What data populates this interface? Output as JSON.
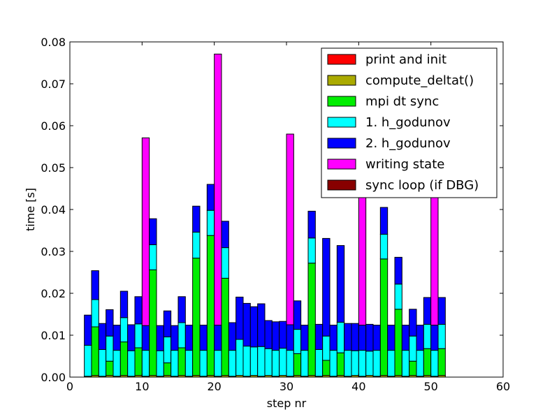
{
  "chart_data": {
    "type": "bar",
    "stacked": true,
    "xlabel": "step nr",
    "ylabel": "time [s]",
    "xlim": [
      0,
      60
    ],
    "ylim": [
      0,
      0.08
    ],
    "xticks": [
      0,
      10,
      20,
      30,
      40,
      50,
      60
    ],
    "xtick_labels": [
      "0",
      "10",
      "20",
      "30",
      "40",
      "50",
      "60"
    ],
    "yticks": [
      0,
      0.01,
      0.02,
      0.03,
      0.04,
      0.05,
      0.06,
      0.07,
      0.08
    ],
    "ytick_labels": [
      "0.00",
      "0.01",
      "0.02",
      "0.03",
      "0.04",
      "0.05",
      "0.06",
      "0.07",
      "0.08"
    ],
    "grid": false,
    "legend_position": "top-right",
    "bar_width": 1.0,
    "x": [
      2,
      3,
      4,
      5,
      6,
      7,
      8,
      9,
      10,
      11,
      12,
      13,
      14,
      15,
      16,
      17,
      18,
      19,
      20,
      21,
      22,
      23,
      24,
      25,
      26,
      27,
      28,
      29,
      30,
      31,
      32,
      33,
      34,
      35,
      36,
      37,
      38,
      39,
      40,
      41,
      42,
      43,
      44,
      45,
      46,
      47,
      48,
      49,
      50,
      51
    ],
    "series": [
      {
        "name": "print and init",
        "color": "#ff0000",
        "values": [
          0,
          0,
          0,
          0,
          0,
          0,
          0,
          0,
          0,
          0,
          0,
          0,
          0,
          0,
          0,
          0,
          0,
          0,
          0,
          0,
          0,
          0,
          0,
          0,
          0,
          0,
          0,
          0,
          0,
          0,
          0,
          0,
          0,
          0,
          0,
          0,
          0,
          0,
          0,
          0,
          0,
          0,
          0,
          0,
          0,
          0,
          0,
          0,
          0,
          0
        ]
      },
      {
        "name": "compute_deltat()",
        "color": "#aaaa00",
        "values": [
          0.0002,
          0.0004,
          0.0002,
          0.0004,
          0.0002,
          0.0004,
          0.0002,
          0.0004,
          0.0002,
          0.0004,
          0.0002,
          0.0004,
          0.0002,
          0.0004,
          0.0002,
          0.0004,
          0.0002,
          0.0004,
          0.0002,
          0.0004,
          0.0002,
          0.0004,
          0.0002,
          0.0004,
          0.0002,
          0.0004,
          0.0002,
          0.0004,
          0.0002,
          0.0004,
          0.0002,
          0.0004,
          0.0002,
          0.0004,
          0.0002,
          0.0004,
          0.0002,
          0.0004,
          0.0002,
          0.0004,
          0.0002,
          0.0004,
          0.0002,
          0.0004,
          0.0002,
          0.0004,
          0.0002,
          0.0004,
          0.0002,
          0.0004
        ]
      },
      {
        "name": "mpi dt sync",
        "color": "#00ee00",
        "values": [
          0,
          0.0116,
          0,
          0.0034,
          0,
          0.008,
          0,
          0.0066,
          0,
          0.0252,
          0,
          0.003,
          0,
          0.0066,
          0,
          0.028,
          0,
          0.0334,
          0,
          0.0232,
          0,
          0,
          0,
          0,
          0,
          0,
          0,
          0,
          0,
          0.0052,
          0,
          0.0268,
          0,
          0.0036,
          0,
          0.0054,
          0,
          0,
          0,
          0,
          0,
          0.0278,
          0,
          0.0158,
          0,
          0.0034,
          0,
          0.0064,
          0,
          0.0064
        ]
      },
      {
        "name": "1. h_godunov",
        "color": "#00ffff",
        "values": [
          0.0074,
          0.0065,
          0.0064,
          0.006,
          0.0062,
          0.0058,
          0.0061,
          0.0057,
          0.0062,
          0.006,
          0.0061,
          0.0062,
          0.0062,
          0.006,
          0.0062,
          0.0062,
          0.0062,
          0.006,
          0.0062,
          0.0073,
          0.0062,
          0.0086,
          0.0072,
          0.0068,
          0.0071,
          0.0064,
          0.0062,
          0.0065,
          0.0062,
          0.0058,
          0.0062,
          0.006,
          0.0064,
          0.0058,
          0.0062,
          0.0073,
          0.0062,
          0.0059,
          0.0062,
          0.0058,
          0.0062,
          0.0059,
          0.0062,
          0.006,
          0.0062,
          0.006,
          0.0062,
          0.0058,
          0.0062,
          0.0058
        ]
      },
      {
        "name": "2. h_godunov",
        "color": "#0000ff",
        "values": [
          0.0072,
          0.0069,
          0.0062,
          0.0063,
          0.006,
          0.0063,
          0.0062,
          0.0065,
          0.0059,
          0.0062,
          0.006,
          0.0062,
          0.0059,
          0.0062,
          0.006,
          0.0062,
          0.006,
          0.0062,
          0.006,
          0.0063,
          0.0066,
          0.0101,
          0.0102,
          0.0096,
          0.0102,
          0.0067,
          0.0068,
          0.0064,
          0.0061,
          0.0068,
          0.006,
          0.0064,
          0.006,
          0.0233,
          0.006,
          0.0183,
          0.0064,
          0.0065,
          0.006,
          0.0064,
          0.006,
          0.0064,
          0.006,
          0.0064,
          0.006,
          0.0064,
          0.006,
          0.0064,
          0.006,
          0.0064
        ]
      },
      {
        "name": "writing state",
        "color": "#ff00ff",
        "values": [
          0,
          0,
          0,
          0,
          0,
          0,
          0,
          0,
          0.0448,
          0,
          0,
          0,
          0,
          0,
          0,
          0,
          0,
          0,
          0.0647,
          0,
          0,
          0,
          0,
          0,
          0,
          0,
          0,
          0,
          0.0455,
          0,
          0,
          0,
          0,
          0,
          0,
          0,
          0,
          0,
          0.0555,
          0,
          0,
          0,
          0,
          0,
          0,
          0,
          0,
          0,
          0.0555,
          0
        ]
      },
      {
        "name": "sync loop (if DBG)",
        "color": "#880000",
        "values": [
          0,
          0,
          0,
          0,
          0,
          0,
          0,
          0,
          0,
          0,
          0,
          0,
          0,
          0,
          0,
          0,
          0,
          0,
          0,
          0,
          0,
          0,
          0,
          0,
          0,
          0,
          0,
          0,
          0,
          0,
          0,
          0,
          0,
          0,
          0,
          0,
          0,
          0,
          0,
          0,
          0,
          0,
          0,
          0,
          0,
          0,
          0,
          0,
          0,
          0
        ]
      }
    ]
  }
}
